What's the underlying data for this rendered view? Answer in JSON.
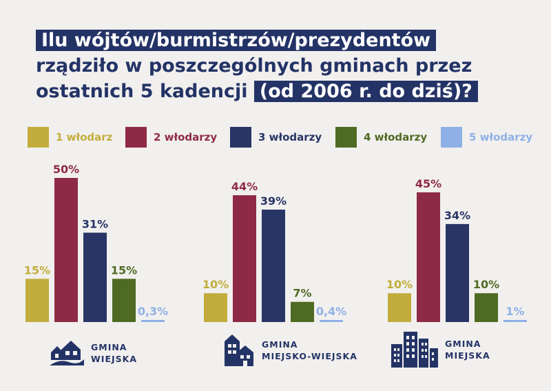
{
  "title": {
    "line1": "Ilu wójtów/burmistrzów/prezydentów",
    "line2": "rządziło w poszczególnych gminach przez",
    "line3a": "ostatnich 5 kadencji ",
    "line3b": "(od 2006 r. do dziś)?"
  },
  "colors": [
    "#c2ad3c",
    "#8e2a45",
    "#283565",
    "#4f6b23",
    "#8fb0e6"
  ],
  "chart_data": {
    "type": "bar",
    "legend_position": "top",
    "grid": false,
    "series": [
      {
        "name": "1 włodarz",
        "color": "#c2ad3c"
      },
      {
        "name": "2 włodarzy",
        "color": "#8e2a45"
      },
      {
        "name": "3 włodarzy",
        "color": "#283565"
      },
      {
        "name": "4 włodarzy",
        "color": "#4f6b23"
      },
      {
        "name": "5 włodarzy",
        "color": "#8fb0e6"
      }
    ],
    "groups": [
      {
        "name_line1": "GMINA",
        "name_line2": "WIEJSKA",
        "icon": "rural-houses-icon",
        "values": [
          15,
          50,
          31,
          15,
          0.3
        ],
        "labels": [
          "15%",
          "50%",
          "31%",
          "15%",
          "0,3%"
        ]
      },
      {
        "name_line1": "GMINA",
        "name_line2": "MIEJSKO-WIEJSKA",
        "icon": "town-buildings-icon",
        "values": [
          10,
          44,
          39,
          7,
          0.4
        ],
        "labels": [
          "10%",
          "44%",
          "39%",
          "7%",
          "0,4%"
        ]
      },
      {
        "name_line1": "GMINA",
        "name_line2": "MIEJSKA",
        "icon": "city-skyscrapers-icon",
        "values": [
          10,
          45,
          34,
          10,
          1
        ],
        "labels": [
          "10%",
          "45%",
          "34%",
          "10%",
          "1%"
        ]
      }
    ]
  }
}
